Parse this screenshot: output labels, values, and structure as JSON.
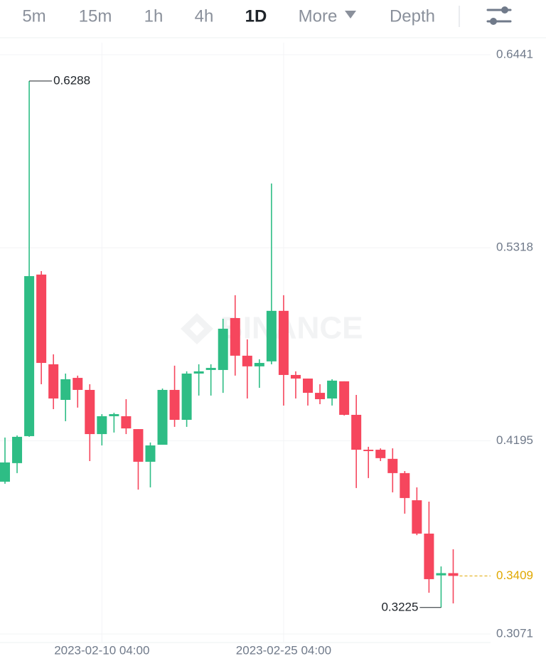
{
  "toolbar": {
    "tabs": [
      "5m",
      "15m",
      "1h",
      "4h",
      "1D",
      "More",
      "Depth"
    ],
    "active": 4
  },
  "chart_data": {
    "type": "candlestick",
    "watermark": "BINANCE",
    "categories": [
      null,
      null,
      null,
      null,
      null,
      null,
      null,
      null,
      "2023-02-10 04:00",
      null,
      null,
      null,
      null,
      null,
      null,
      null,
      null,
      null,
      null,
      null,
      null,
      null,
      null,
      "2023-02-25 04:00",
      null,
      null,
      null,
      null,
      null,
      null,
      null,
      null,
      null,
      null,
      null,
      null,
      null,
      null
    ],
    "open": [
      0.3957,
      0.4065,
      0.4222,
      0.5162,
      0.464,
      0.4433,
      0.4561,
      0.4491,
      0.4234,
      0.4338,
      0.4338,
      0.4263,
      0.4073,
      0.4172,
      0.4491,
      0.4317,
      0.4586,
      0.4607,
      0.4607,
      0.4909,
      0.469,
      0.4628,
      0.4657,
      0.4951,
      0.4578,
      0.4557,
      0.4474,
      0.4441,
      0.4541,
      0.4346,
      0.4143,
      0.4143,
      0.409,
      0.4007,
      0.3849,
      0.3655,
      0.3412,
      0.3425
    ],
    "high": [
      0.4214,
      0.4226,
      0.6288,
      0.5182,
      0.4698,
      0.4586,
      0.4574,
      0.4524,
      0.435,
      0.4358,
      0.4437,
      0.4263,
      0.4185,
      0.4499,
      0.4632,
      0.4599,
      0.464,
      0.464,
      0.4905,
      0.5042,
      0.4785,
      0.4669,
      0.5692,
      0.5042,
      0.4599,
      0.4557,
      0.4524,
      0.4553,
      0.4541,
      0.4462,
      0.416,
      0.4151,
      0.4151,
      0.4019,
      0.3924,
      0.3841,
      0.3464,
      0.3564
    ],
    "low": [
      0.3945,
      0.4007,
      0.4218,
      0.4524,
      0.4379,
      0.4309,
      0.4388,
      0.4077,
      0.4168,
      0.4243,
      0.4234,
      0.3911,
      0.3924,
      0.4172,
      0.4276,
      0.4276,
      0.4458,
      0.4458,
      0.4474,
      0.4574,
      0.4441,
      0.4503,
      0.464,
      0.44,
      0.4441,
      0.44,
      0.4408,
      0.44,
      0.4342,
      0.392,
      0.3978,
      0.4077,
      0.3895,
      0.3771,
      0.3646,
      0.3311,
      0.3225,
      0.3249
    ],
    "close": [
      0.4069,
      0.4218,
      0.5153,
      0.4648,
      0.4441,
      0.4553,
      0.4491,
      0.4234,
      0.4338,
      0.435,
      0.4267,
      0.4073,
      0.4168,
      0.4491,
      0.4317,
      0.4586,
      0.4599,
      0.4619,
      0.4847,
      0.469,
      0.4628,
      0.4648,
      0.4951,
      0.4578,
      0.4557,
      0.4474,
      0.4437,
      0.4545,
      0.4346,
      0.4143,
      0.4135,
      0.4094,
      0.4007,
      0.3862,
      0.3655,
      0.339,
      0.3425,
      0.3409
    ],
    "up_color": "#2ebd85",
    "down_color": "#f6465d",
    "last_price_color": "#e0a800",
    "ylim": [
      0.3013,
      0.6511
    ],
    "yticks": [
      0.6441,
      0.5318,
      0.4195,
      0.3071
    ],
    "grid": true
  }
}
